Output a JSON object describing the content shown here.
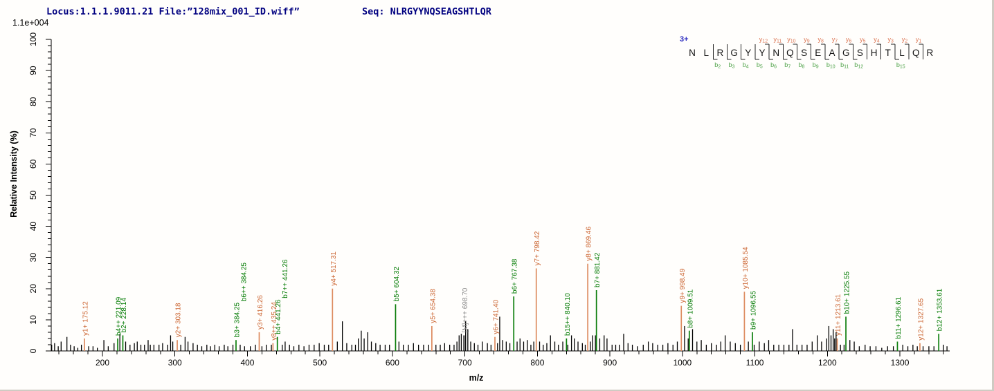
{
  "header": {
    "locus_file": "Locus:1.1.1.9011.21 File:”128mix_001_ID.wiff”",
    "seq_label": "Seq: NLRGYYNQSEAGSHTLQR"
  },
  "peptide": {
    "charge": "3+",
    "residues": [
      "N",
      "L",
      "R",
      "G",
      "Y",
      "Y",
      "N",
      "Q",
      "S",
      "E",
      "A",
      "G",
      "S",
      "H",
      "T",
      "L",
      "Q",
      "R"
    ],
    "b_ions": [
      2,
      3,
      4,
      5,
      6,
      7,
      8,
      9,
      10,
      11,
      12,
      15
    ],
    "y_ions": [
      1,
      2,
      3,
      4,
      5,
      6,
      7,
      8,
      9,
      10,
      11,
      12
    ]
  },
  "colors": {
    "header_text": "#000080",
    "charge": "#2a2ac0",
    "y_label": "#cc6633",
    "y_line": "#dd8a5e",
    "b_label": "#007a00",
    "b_line": "#0a7d0a",
    "precursor_label": "#8a8a8a",
    "noise_line": "#000000",
    "seq_y": "#dd7755",
    "seq_b": "#4aa044",
    "axis": "#000000"
  },
  "chart_data": {
    "type": "bar",
    "variant": "ms2-mass-spectrum",
    "title": "",
    "xlabel": "m/z",
    "ylabel": "Relative Intensity (%)",
    "scale_label": "1.1e+004",
    "xlim": [
      129,
      1369
    ],
    "ylim": [
      0,
      100
    ],
    "x_major_ticks": [
      200,
      300,
      400,
      500,
      600,
      700,
      800,
      900,
      1000,
      1100,
      1200,
      1300
    ],
    "x_minor_step": 20,
    "y_major_ticks": [
      0,
      10,
      20,
      30,
      40,
      50,
      60,
      70,
      80,
      90,
      100
    ],
    "y_minor_step": 2,
    "grid": false,
    "legend": false,
    "labeled_peaks": [
      {
        "label": "y1+ 175.12",
        "mz": 175.12,
        "intensity": 4,
        "series": "y"
      },
      {
        "label": "b4++ 221.09",
        "mz": 221.09,
        "intensity": 4,
        "series": "b"
      },
      {
        "label": "b2+ 228.14",
        "mz": 228.14,
        "intensity": 5,
        "series": "b"
      },
      {
        "label": "y2+ 303.18",
        "mz": 303.18,
        "intensity": 3.5,
        "series": "y"
      },
      {
        "label": "b3+ 384.25",
        "mz": 384.25,
        "intensity": 3.5,
        "series": "b",
        "label2": "b6++ 384.25"
      },
      {
        "label": "y3+ 416.26",
        "mz": 416.26,
        "intensity": 6,
        "series": "y"
      },
      {
        "label": "y8++ 435.24",
        "mz": 435.24,
        "intensity": 2.5,
        "series": "y"
      },
      {
        "label": "b4+ 441.26",
        "mz": 441.26,
        "intensity": 4.5,
        "series": "b",
        "label2": "b7++ 441.26"
      },
      {
        "label": "y4+ 517.31",
        "mz": 517.31,
        "intensity": 20,
        "series": "y"
      },
      {
        "label": "b5+ 604.32",
        "mz": 604.32,
        "intensity": 15,
        "series": "b"
      },
      {
        "label": "y5+ 654.38",
        "mz": 654.38,
        "intensity": 8,
        "series": "y"
      },
      {
        "label": "[M]+++ 698.70",
        "mz": 698.7,
        "intensity": 5,
        "series": "m"
      },
      {
        "label": "y6+ 741.40",
        "mz": 741.4,
        "intensity": 4.5,
        "series": "y"
      },
      {
        "label": "b6+ 767.38",
        "mz": 767.38,
        "intensity": 17.5,
        "series": "b"
      },
      {
        "label": "y7+ 798.42",
        "mz": 798.42,
        "intensity": 26.5,
        "series": "y"
      },
      {
        "label": "b15++ 840.10",
        "mz": 840.1,
        "intensity": 4,
        "series": "b"
      },
      {
        "label": "y8+ 869.46",
        "mz": 869.46,
        "intensity": 28,
        "series": "y"
      },
      {
        "label": "b7+ 881.42",
        "mz": 881.42,
        "intensity": 19.5,
        "series": "b"
      },
      {
        "label": "y9+ 998.49",
        "mz": 998.49,
        "intensity": 14.5,
        "series": "y"
      },
      {
        "label": "b8+ 1009.51",
        "mz": 1009.51,
        "intensity": 6.5,
        "series": "b"
      },
      {
        "label": "y10+ 1085.54",
        "mz": 1085.54,
        "intensity": 19,
        "series": "y"
      },
      {
        "label": "b9+ 1096.55",
        "mz": 1096.55,
        "intensity": 6,
        "series": "b"
      },
      {
        "label": "y11+ 1213.61",
        "mz": 1213.61,
        "intensity": 4,
        "series": "y"
      },
      {
        "label": "b10+ 1225.55",
        "mz": 1225.55,
        "intensity": 11,
        "series": "b"
      },
      {
        "label": "b11+ 1296.61",
        "mz": 1296.61,
        "intensity": 3,
        "series": "b"
      },
      {
        "label": "y12+ 1327.65",
        "mz": 1327.65,
        "intensity": 2.5,
        "series": "y"
      },
      {
        "label": "b12+ 1353.61",
        "mz": 1353.61,
        "intensity": 5.5,
        "series": "b"
      }
    ],
    "noise_peaks": [
      [
        130,
        2
      ],
      [
        134,
        2.5
      ],
      [
        139,
        1.5
      ],
      [
        143,
        3
      ],
      [
        151,
        4.5
      ],
      [
        156,
        2
      ],
      [
        161,
        1.5
      ],
      [
        166,
        1
      ],
      [
        171,
        2
      ],
      [
        181,
        1.5
      ],
      [
        187,
        1.5
      ],
      [
        193,
        1
      ],
      [
        202,
        3.5
      ],
      [
        208,
        1.5
      ],
      [
        216,
        2.5
      ],
      [
        224,
        5.5
      ],
      [
        232,
        3
      ],
      [
        238,
        2
      ],
      [
        244,
        2.5
      ],
      [
        248,
        3
      ],
      [
        253,
        2
      ],
      [
        258,
        2
      ],
      [
        263,
        3.5
      ],
      [
        266,
        2
      ],
      [
        271,
        2
      ],
      [
        278,
        2
      ],
      [
        283,
        2.5
      ],
      [
        290,
        2
      ],
      [
        294,
        5
      ],
      [
        297,
        3
      ],
      [
        308,
        2
      ],
      [
        314,
        4.5
      ],
      [
        318,
        3
      ],
      [
        325,
        2.5
      ],
      [
        331,
        2
      ],
      [
        337,
        1.5
      ],
      [
        344,
        2
      ],
      [
        349,
        1.5
      ],
      [
        355,
        2
      ],
      [
        361,
        1.5
      ],
      [
        368,
        2
      ],
      [
        373,
        1.5
      ],
      [
        380,
        2
      ],
      [
        390,
        2
      ],
      [
        396,
        1.5
      ],
      [
        404,
        1.5
      ],
      [
        411,
        2
      ],
      [
        420,
        1.5
      ],
      [
        426,
        2
      ],
      [
        433,
        2
      ],
      [
        448,
        2
      ],
      [
        452,
        3
      ],
      [
        458,
        2
      ],
      [
        464,
        1.5
      ],
      [
        471,
        2
      ],
      [
        478,
        1.5
      ],
      [
        485,
        2
      ],
      [
        492,
        2
      ],
      [
        499,
        2.5
      ],
      [
        506,
        2
      ],
      [
        512,
        2
      ],
      [
        524,
        3
      ],
      [
        531,
        9.5
      ],
      [
        537,
        2.5
      ],
      [
        544,
        2
      ],
      [
        549,
        2
      ],
      [
        553,
        4
      ],
      [
        557,
        6.5
      ],
      [
        561,
        4
      ],
      [
        566,
        6
      ],
      [
        571,
        3
      ],
      [
        577,
        2.5
      ],
      [
        583,
        2
      ],
      [
        590,
        2
      ],
      [
        596,
        2
      ],
      [
        609,
        3
      ],
      [
        615,
        2
      ],
      [
        622,
        2
      ],
      [
        629,
        2.5
      ],
      [
        636,
        2
      ],
      [
        643,
        2
      ],
      [
        650,
        2
      ],
      [
        660,
        2
      ],
      [
        666,
        2
      ],
      [
        672,
        2.5
      ],
      [
        679,
        2
      ],
      [
        685,
        2
      ],
      [
        689,
        3
      ],
      [
        692,
        5
      ],
      [
        695,
        5.5
      ],
      [
        701,
        9.5
      ],
      [
        704,
        7
      ],
      [
        708,
        3
      ],
      [
        713,
        2.5
      ],
      [
        718,
        2
      ],
      [
        724,
        3
      ],
      [
        731,
        2.5
      ],
      [
        736,
        2
      ],
      [
        745,
        2.5
      ],
      [
        748,
        11
      ],
      [
        752,
        3.5
      ],
      [
        757,
        3
      ],
      [
        762,
        2.5
      ],
      [
        772,
        3
      ],
      [
        776,
        4
      ],
      [
        781,
        3
      ],
      [
        786,
        3.5
      ],
      [
        791,
        2
      ],
      [
        795,
        3
      ],
      [
        803,
        3
      ],
      [
        808,
        2
      ],
      [
        813,
        2.5
      ],
      [
        818,
        5
      ],
      [
        824,
        3
      ],
      [
        829,
        2
      ],
      [
        835,
        3
      ],
      [
        842,
        2
      ],
      [
        847,
        5
      ],
      [
        851,
        4
      ],
      [
        856,
        3
      ],
      [
        862,
        2.5
      ],
      [
        866,
        2
      ],
      [
        873,
        3
      ],
      [
        876,
        5
      ],
      [
        880,
        5
      ],
      [
        886,
        4
      ],
      [
        892,
        5
      ],
      [
        896,
        4
      ],
      [
        903,
        2
      ],
      [
        908,
        2
      ],
      [
        913,
        2
      ],
      [
        919,
        5.5
      ],
      [
        925,
        2.5
      ],
      [
        931,
        2
      ],
      [
        938,
        1.5
      ],
      [
        946,
        2
      ],
      [
        953,
        3
      ],
      [
        959,
        2.5
      ],
      [
        966,
        2
      ],
      [
        973,
        2
      ],
      [
        980,
        2.5
      ],
      [
        987,
        2
      ],
      [
        993,
        3
      ],
      [
        1003,
        8
      ],
      [
        1008,
        4
      ],
      [
        1014,
        7
      ],
      [
        1020,
        3
      ],
      [
        1026,
        3.5
      ],
      [
        1033,
        2
      ],
      [
        1040,
        2.5
      ],
      [
        1047,
        2
      ],
      [
        1053,
        3
      ],
      [
        1059,
        5
      ],
      [
        1066,
        3
      ],
      [
        1073,
        2.5
      ],
      [
        1080,
        2
      ],
      [
        1091,
        3
      ],
      [
        1099,
        2
      ],
      [
        1106,
        3
      ],
      [
        1113,
        2.5
      ],
      [
        1119,
        3.5
      ],
      [
        1126,
        2
      ],
      [
        1133,
        2
      ],
      [
        1140,
        2
      ],
      [
        1147,
        2
      ],
      [
        1152,
        7
      ],
      [
        1158,
        2
      ],
      [
        1165,
        2
      ],
      [
        1172,
        2
      ],
      [
        1179,
        3
      ],
      [
        1186,
        5
      ],
      [
        1192,
        3
      ],
      [
        1199,
        4
      ],
      [
        1202,
        8
      ],
      [
        1205,
        5
      ],
      [
        1208,
        7
      ],
      [
        1210,
        4
      ],
      [
        1212,
        6
      ],
      [
        1218,
        2
      ],
      [
        1223,
        2
      ],
      [
        1231,
        3.5
      ],
      [
        1237,
        3
      ],
      [
        1244,
        1.5
      ],
      [
        1252,
        2
      ],
      [
        1259,
        1.5
      ],
      [
        1267,
        1.5
      ],
      [
        1275,
        1
      ],
      [
        1283,
        1.5
      ],
      [
        1291,
        1.5
      ],
      [
        1304,
        2
      ],
      [
        1311,
        1.5
      ],
      [
        1318,
        2
      ],
      [
        1324,
        1.5
      ],
      [
        1332,
        1.5
      ],
      [
        1340,
        1.5
      ],
      [
        1347,
        1.5
      ],
      [
        1360,
        2
      ],
      [
        1365,
        1.5
      ]
    ]
  }
}
